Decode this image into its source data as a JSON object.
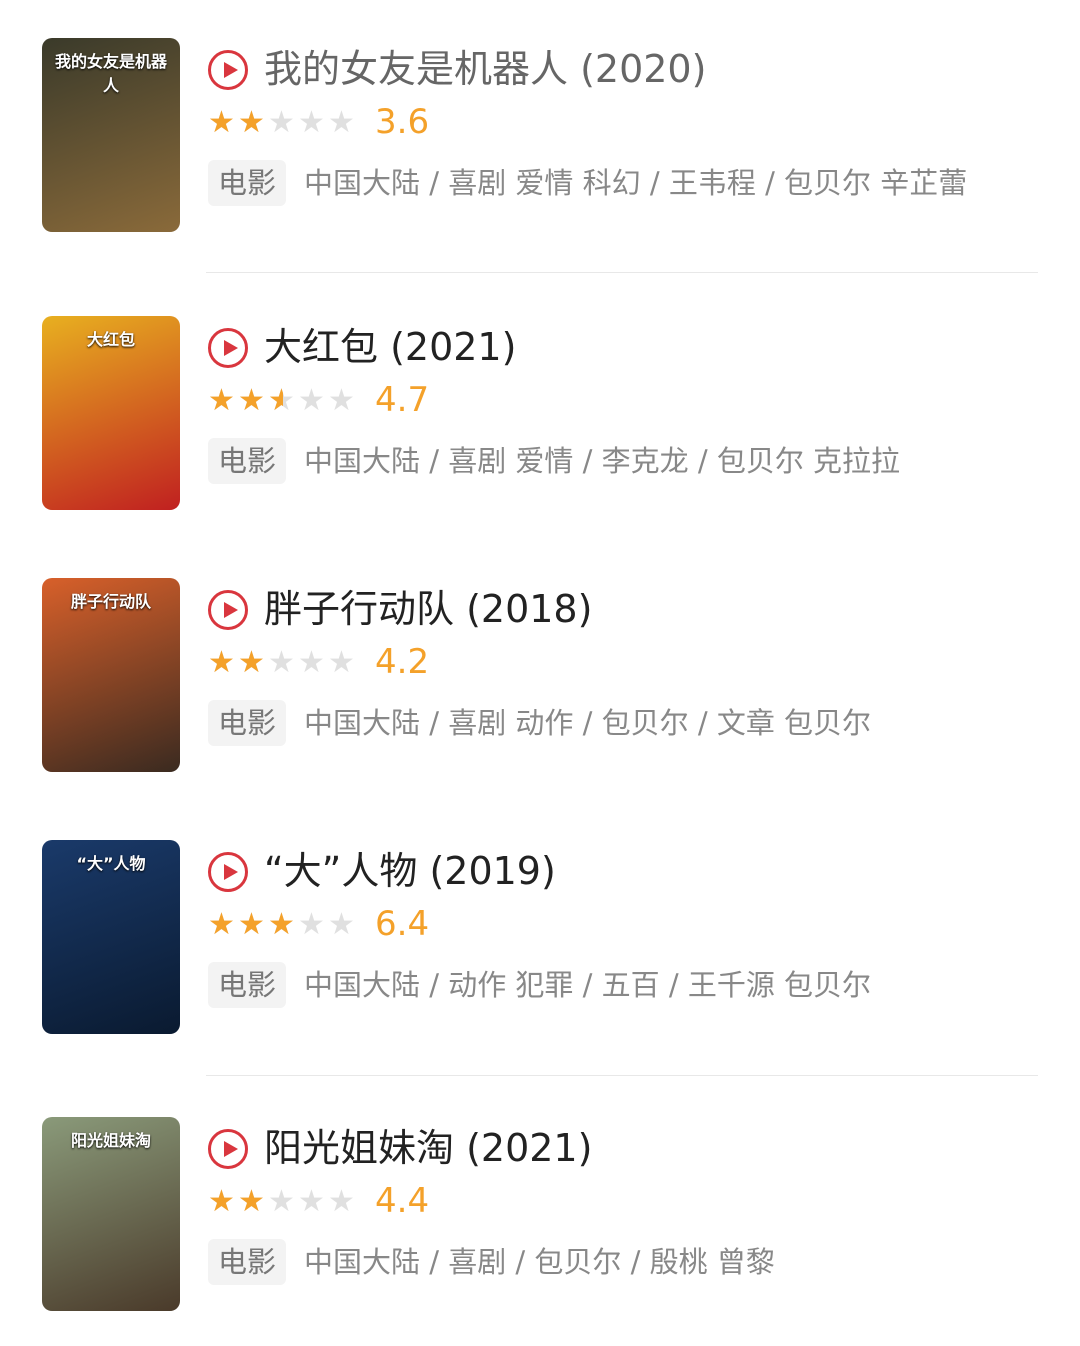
{
  "colors": {
    "accent": "#d9363e",
    "star": "#f4a12a"
  },
  "items": [
    {
      "poster_text": "我的女友是机器人",
      "poster_colors": [
        "#3a3a2a",
        "#8a6a3a"
      ],
      "title": "我的女友是机器人 (2020)",
      "title_color": "#666666",
      "stars": 2,
      "rating": "3.6",
      "tag": "电影",
      "meta": "中国大陆 / 喜剧 爱情 科幻 / 王韦程 / 包贝尔 辛芷蕾"
    },
    {
      "poster_text": "大红包",
      "poster_colors": [
        "#e8b020",
        "#c02020"
      ],
      "title": "大红包 (2021)",
      "title_color": "#222222",
      "stars": 2.5,
      "rating": "4.7",
      "tag": "电影",
      "meta": "中国大陆 / 喜剧 爱情 / 李克龙 / 包贝尔 克拉拉"
    },
    {
      "poster_text": "胖子行动队",
      "poster_colors": [
        "#d8602a",
        "#3a2a20"
      ],
      "title": "胖子行动队 (2018)",
      "title_color": "#222222",
      "stars": 2,
      "rating": "4.2",
      "tag": "电影",
      "meta": "中国大陆 / 喜剧 动作 / 包贝尔 / 文章 包贝尔"
    },
    {
      "poster_text": "“大”人物",
      "poster_colors": [
        "#1a3a6a",
        "#0a1a30"
      ],
      "title": "“大”人物 (2019)",
      "title_color": "#222222",
      "stars": 3,
      "rating": "6.4",
      "tag": "电影",
      "meta": "中国大陆 / 动作 犯罪 / 五百 / 王千源 包贝尔"
    },
    {
      "poster_text": "阳光姐妹淘",
      "poster_colors": [
        "#8a9a7a",
        "#4a3a2a"
      ],
      "title": "阳光姐妹淘 (2021)",
      "title_color": "#222222",
      "stars": 2,
      "rating": "4.4",
      "tag": "电影",
      "meta": "中国大陆 / 喜剧 / 包贝尔 / 殷桃 曾黎"
    }
  ]
}
